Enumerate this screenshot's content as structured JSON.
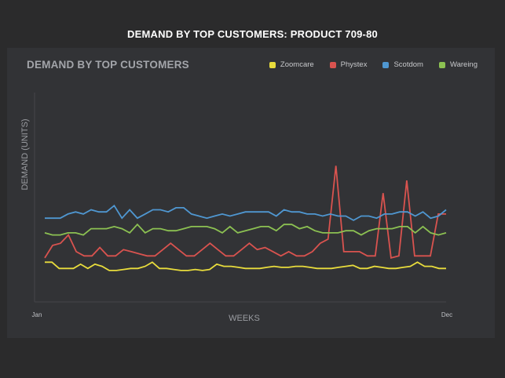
{
  "page_title": "DEMAND BY TOP CUSTOMERS: PRODUCT 709-80",
  "chart_data": {
    "type": "line",
    "title": "DEMAND BY TOP CUSTOMERS",
    "xlabel": "WEEKS",
    "ylabel": "DEMAND (UNITS)",
    "x_tick_labels": [
      "Jan",
      "Dec"
    ],
    "ylim": [
      0,
      100
    ],
    "grid": false,
    "legend_position": "top-right",
    "series": [
      {
        "name": "Zoomcare",
        "color": "#e8dc3c",
        "values": [
          19,
          19,
          16,
          16,
          16,
          18,
          16,
          18,
          17,
          15,
          15,
          15.5,
          16,
          16,
          17,
          19,
          16,
          16,
          15.5,
          15,
          15,
          15.5,
          15,
          15.5,
          18,
          17,
          17,
          16.5,
          16,
          16,
          16,
          16.5,
          17,
          16.5,
          16.5,
          17,
          17,
          16.5,
          16,
          16,
          16,
          16.5,
          17,
          17.5,
          16,
          16,
          17,
          16.5,
          16,
          16,
          16.5,
          17,
          19,
          17,
          17,
          16,
          16
        ]
      },
      {
        "name": "Phystex",
        "color": "#d9534f",
        "values": [
          21,
          27,
          28,
          32,
          24,
          22,
          22,
          26,
          22,
          22,
          25,
          24,
          23,
          22,
          22,
          25,
          28,
          25,
          22,
          22,
          25,
          28,
          25,
          22,
          22,
          25,
          28,
          25,
          26,
          24,
          22,
          24,
          22,
          22,
          24,
          28,
          30,
          65,
          24,
          24,
          24,
          22,
          22,
          52,
          21,
          22,
          58,
          22,
          22,
          22,
          42,
          42
        ]
      },
      {
        "name": "Scotdom",
        "color": "#4f97d1",
        "values": [
          40,
          40,
          40,
          42,
          43,
          42,
          44,
          43,
          43,
          46,
          40,
          44,
          40,
          42,
          44,
          44,
          43,
          45,
          45,
          42,
          41,
          40,
          41,
          42,
          41,
          42,
          43,
          43,
          43,
          43,
          41,
          44,
          43,
          43,
          42,
          42,
          41,
          42,
          41,
          41,
          39,
          41,
          41,
          40,
          42,
          42,
          43,
          43,
          41,
          43,
          40,
          41,
          44
        ]
      },
      {
        "name": "Wareing",
        "color": "#8cc152",
        "values": [
          33,
          32,
          32,
          33,
          33,
          32,
          35,
          35,
          35,
          36,
          35,
          33,
          37,
          33,
          35,
          35,
          34,
          34,
          35,
          36,
          36,
          36,
          35,
          33,
          36,
          33,
          34,
          35,
          36,
          36,
          34,
          37,
          37,
          35,
          36,
          34,
          33,
          33,
          33,
          34,
          34,
          32,
          34,
          35,
          35,
          35,
          36,
          36,
          33,
          36,
          33,
          32,
          33
        ]
      }
    ]
  }
}
